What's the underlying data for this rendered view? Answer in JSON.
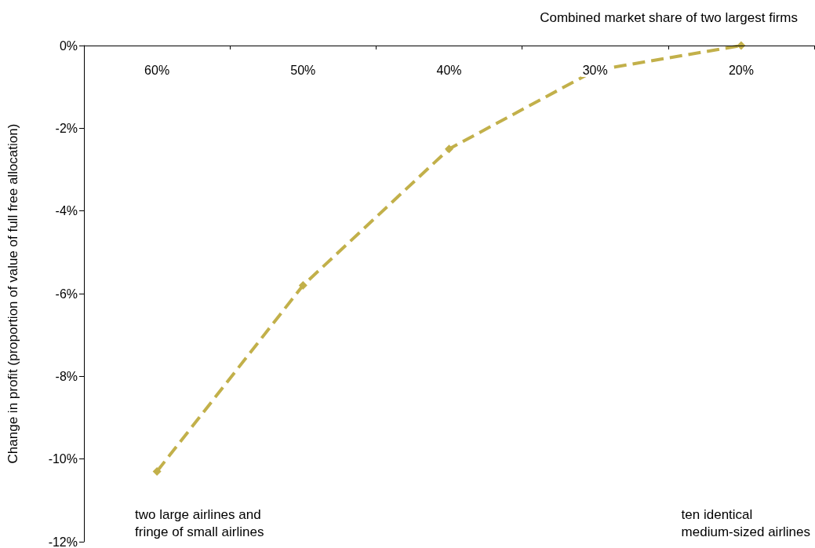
{
  "chart_data": {
    "type": "line",
    "xlabel": "Combined market share of two largest firms",
    "ylabel": "Change in profit (proportion of value of full free allocation)",
    "categories": [
      "60%",
      "50%",
      "40%",
      "30%",
      "20%"
    ],
    "series": [
      {
        "color": "#c2b04a",
        "values": [
          -10.3,
          -5.8,
          -2.5,
          -0.6,
          0
        ]
      }
    ],
    "ylim": [
      -12,
      0
    ],
    "yticks": [
      {
        "value": -12,
        "label": "-12%"
      },
      {
        "value": -10,
        "label": "-10%"
      },
      {
        "value": -8,
        "label": "-8%"
      },
      {
        "value": -6,
        "label": "-6%"
      },
      {
        "value": -4,
        "label": "-4%"
      },
      {
        "value": -2,
        "label": "-2%"
      },
      {
        "value": 0,
        "label": "0%"
      }
    ],
    "annotations": [
      "two large airlines and\nfringe of small airlines",
      "ten identical\nmedium-sized airlines"
    ],
    "marker": "diamond",
    "line_style": "dashed",
    "grid": false
  }
}
